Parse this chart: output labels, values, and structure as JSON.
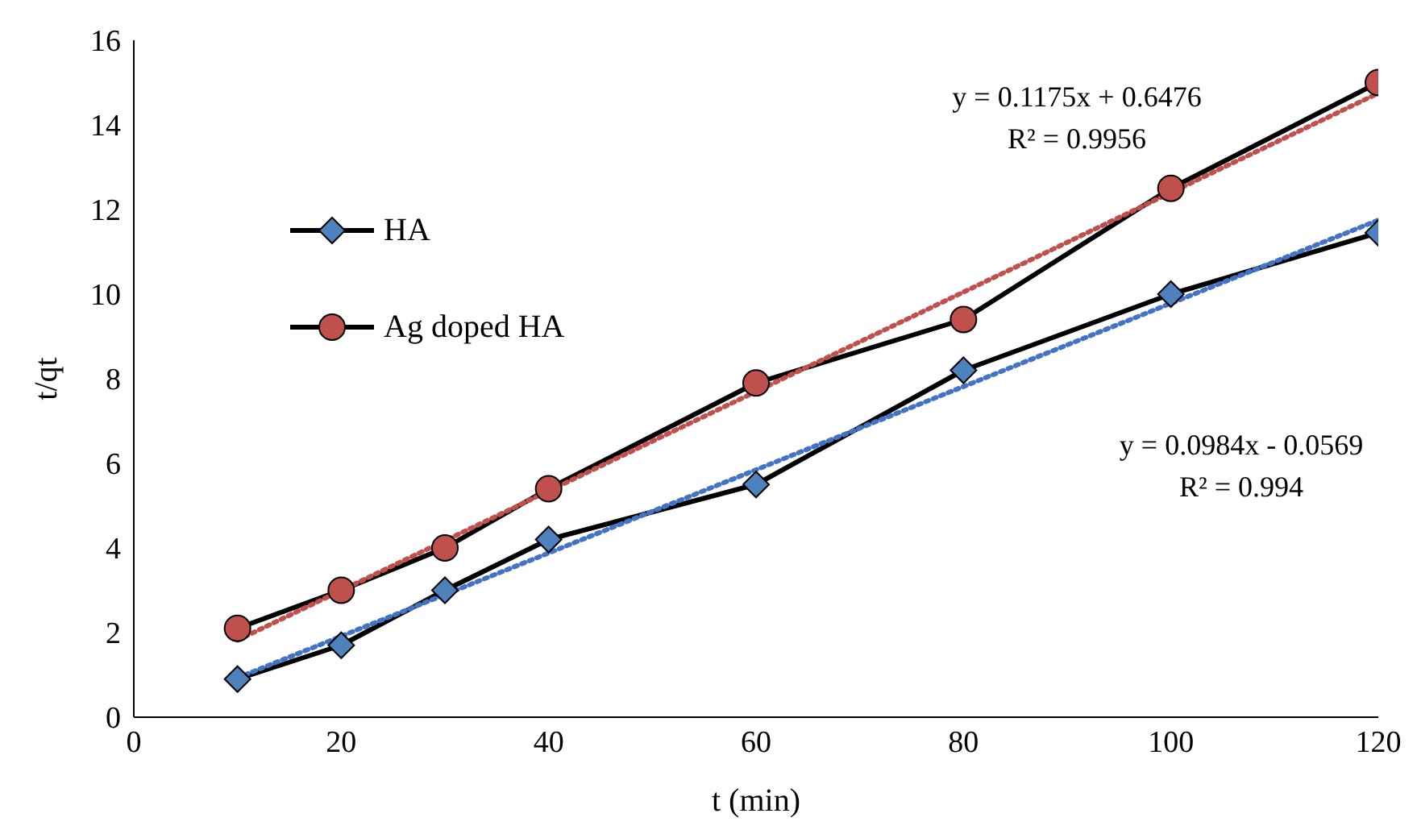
{
  "chart_data": {
    "type": "line",
    "xlabel": "t (min)",
    "ylabel": "t/qt",
    "xlim": [
      0,
      120
    ],
    "ylim": [
      0,
      16
    ],
    "xticks": [
      0,
      20,
      40,
      60,
      80,
      100,
      120
    ],
    "yticks": [
      0,
      2,
      4,
      6,
      8,
      10,
      12,
      14,
      16
    ],
    "grid": false,
    "legend": "top left",
    "series": [
      {
        "name": "HA",
        "color": "#4f81bd",
        "marker": "diamond",
        "x": [
          10,
          20,
          30,
          40,
          60,
          80,
          100,
          120
        ],
        "values": [
          0.9,
          1.7,
          3.0,
          4.2,
          5.5,
          8.2,
          10.0,
          11.45
        ]
      },
      {
        "name": "Ag doped HA",
        "color": "#c0504d",
        "marker": "circle",
        "x": [
          10,
          20,
          30,
          40,
          60,
          80,
          100,
          120
        ],
        "values": [
          2.1,
          3.0,
          4.0,
          5.4,
          7.9,
          9.4,
          12.5,
          15.0
        ]
      },
      {
        "type": "line",
        "color": "#4472c4",
        "line_style": "dotted",
        "marker": "none",
        "x": [
          10,
          120
        ],
        "values": [
          0.93,
          11.75
        ]
      },
      {
        "type": "line",
        "color": "#c0504d",
        "line_style": "dotted",
        "marker": "none",
        "x": [
          10,
          120
        ],
        "values": [
          1.82,
          14.75
        ]
      }
    ],
    "annotations": [
      "y = 0.1175x + 0.6476",
      "R² = 0.9956",
      "y = 0.0984x - 0.0569",
      "R² = 0.994"
    ]
  }
}
